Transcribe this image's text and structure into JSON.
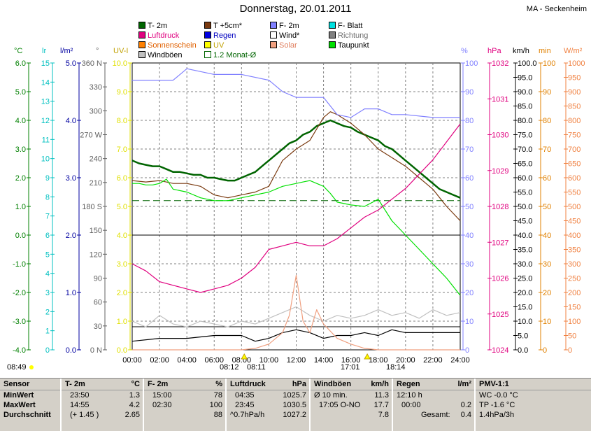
{
  "title": "Donnerstag, 20.01.2011",
  "station": "MA - Seckenheim",
  "legend": [
    {
      "label": "T- 2m",
      "color": "#006400"
    },
    {
      "label": "T +5cm*",
      "color": "#7a3a10"
    },
    {
      "label": "F- 2m",
      "color": "#8080ff"
    },
    {
      "label": "F- Blatt",
      "color": "#00e0e0"
    },
    {
      "label": "Luftdruck",
      "color": "#e0007f"
    },
    {
      "label": "Regen",
      "color": "#0000e0"
    },
    {
      "label": "Wind*",
      "color": "#000000"
    },
    {
      "label": "Richtung",
      "color": "#808080"
    },
    {
      "label": "Sonnenschein",
      "color": "#ff8000"
    },
    {
      "label": "UV",
      "color": "#ffff00"
    },
    {
      "label": "Solar",
      "color": "#f0a080"
    },
    {
      "label": "Taupunkt",
      "color": "#00e000"
    },
    {
      "label": "Windböen",
      "color": "#c0c0c0"
    },
    {
      "label": "1.2 Monat-Ø",
      "color": "#006400"
    }
  ],
  "units": {
    "temp": "°C",
    "lr": "lr",
    "rain": "l/m²",
    "dir": "°",
    "uv": "UV-I",
    "hum": "%",
    "press": "hPa",
    "wind": "km/h",
    "sun": "min",
    "solar": "W/m²"
  },
  "colors": {
    "temp": "#008000",
    "lr": "#00c0c0",
    "rain": "#0000a0",
    "dir": "#606060",
    "uv": "#e0e000",
    "hum": "#8080ff",
    "press": "#e0007f",
    "wind": "#000000",
    "sun": "#e08000",
    "solar": "#f08040"
  },
  "axes": {
    "temp_ticks": [
      "6.0",
      "5.0",
      "4.0",
      "3.0",
      "2.0",
      "1.0",
      "0.0",
      "-1.0",
      "-2.0",
      "-3.0",
      "-4.0"
    ],
    "lr_ticks": [
      "15",
      "14",
      "13",
      "12",
      "11",
      "10",
      "9",
      "8",
      "7",
      "6",
      "5",
      "4",
      "3",
      "2",
      "1",
      "0"
    ],
    "rain_ticks": [
      "5.0",
      "4.0",
      "3.0",
      "2.0",
      "1.0",
      "0.0"
    ],
    "dir_ticks": [
      "360 N",
      "330",
      "300",
      "270 W",
      "240",
      "210",
      "180 S",
      "150",
      "120",
      "90",
      "60",
      "30",
      "0 N"
    ],
    "uv_ticks": [
      "10.0",
      "9.0",
      "8.0",
      "7.0",
      "6.0",
      "5.0",
      "4.0",
      "3.0",
      "2.0",
      "1.0",
      "0.0"
    ],
    "hum_ticks": [
      "100",
      "90",
      "80",
      "70",
      "60",
      "50",
      "40",
      "30",
      "20",
      "10",
      "0"
    ],
    "press_ticks": [
      "1032",
      "1031",
      "1030",
      "1029",
      "1028",
      "1027",
      "1026",
      "1025",
      "1024"
    ],
    "wind_ticks": [
      "100.0",
      "95.0",
      "90.0",
      "85.0",
      "80.0",
      "75.0",
      "70.0",
      "65.0",
      "60.0",
      "55.0",
      "50.0",
      "45.0",
      "40.0",
      "35.0",
      "30.0",
      "25.0",
      "20.0",
      "15.0",
      "10.0",
      "5.0",
      "0.0"
    ],
    "sun_ticks": [
      "100",
      "90",
      "80",
      "70",
      "60",
      "50",
      "40",
      "30",
      "20",
      "10",
      "0"
    ],
    "solar_ticks": [
      "1000",
      "950",
      "900",
      "850",
      "800",
      "750",
      "700",
      "650",
      "600",
      "550",
      "500",
      "450",
      "400",
      "350",
      "300",
      "250",
      "200",
      "150",
      "100",
      "50",
      "0"
    ],
    "time_ticks": [
      "00:00",
      "02:00",
      "04:00",
      "06:00",
      "08:00",
      "10:00",
      "12:00",
      "14:00",
      "16:00",
      "18:00",
      "20:00",
      "22:00",
      "24:00"
    ]
  },
  "times": {
    "sunrise_left": "08:49",
    "sun1": "08:12",
    "sun2": "08:11",
    "sun3": "17:01",
    "sun4": "18:14"
  },
  "chart_data": {
    "type": "line",
    "x_unit": "hours",
    "xlim": [
      0,
      24
    ],
    "series": [
      {
        "name": "T- 2m",
        "axis": "temp",
        "ylim": [
          -4,
          6
        ],
        "x": [
          0,
          0.5,
          1,
          1.5,
          2,
          2.5,
          3,
          3.5,
          4,
          4.5,
          5,
          5.5,
          6,
          6.5,
          7,
          7.5,
          8,
          8.5,
          9,
          9.5,
          10,
          10.5,
          11,
          11.5,
          12,
          12.5,
          13,
          13.5,
          14,
          14.5,
          15,
          15.5,
          16,
          16.5,
          17,
          17.5,
          18,
          18.5,
          19,
          19.5,
          20,
          20.5,
          21,
          21.5,
          22,
          22.5,
          23,
          23.5,
          24
        ],
        "y": [
          2.6,
          2.5,
          2.45,
          2.4,
          2.4,
          2.3,
          2.2,
          2.2,
          2.15,
          2.1,
          2.1,
          2.0,
          2.0,
          1.95,
          1.9,
          1.9,
          2.0,
          2.1,
          2.2,
          2.4,
          2.6,
          2.8,
          3.0,
          3.2,
          3.3,
          3.5,
          3.6,
          3.8,
          3.9,
          4.0,
          3.9,
          3.8,
          3.75,
          3.6,
          3.5,
          3.4,
          3.3,
          3.1,
          3.0,
          2.8,
          2.6,
          2.4,
          2.2,
          2.0,
          1.8,
          1.6,
          1.5,
          1.4,
          1.3
        ]
      },
      {
        "name": "T +5cm*",
        "axis": "temp",
        "ylim": [
          -4,
          6
        ],
        "x": [
          0,
          1,
          2,
          3,
          4,
          5,
          6,
          7,
          8,
          9,
          10,
          11,
          12,
          13,
          14,
          14.5,
          15,
          16,
          17,
          18,
          19,
          20,
          21,
          22,
          23,
          24
        ],
        "y": [
          1.9,
          1.85,
          1.9,
          1.8,
          1.8,
          1.7,
          1.4,
          1.3,
          1.4,
          1.5,
          1.7,
          2.6,
          3.0,
          3.3,
          4.1,
          4.3,
          4.2,
          3.9,
          3.5,
          3.0,
          2.7,
          2.4,
          2.0,
          1.6,
          1.0,
          0.5
        ]
      },
      {
        "name": "Taupunkt",
        "axis": "temp",
        "ylim": [
          -4,
          6
        ],
        "x": [
          0,
          0.5,
          1,
          1.5,
          2,
          2.5,
          3,
          4,
          5,
          6,
          7,
          8,
          9,
          10,
          11,
          12,
          12.5,
          13,
          13.5,
          14,
          14.5,
          15,
          16,
          17,
          18,
          19,
          20,
          21,
          22,
          23,
          24
        ],
        "y": [
          1.8,
          1.8,
          1.75,
          1.75,
          1.8,
          1.95,
          1.6,
          1.5,
          1.3,
          1.2,
          1.2,
          1.3,
          1.4,
          1.5,
          1.7,
          1.8,
          1.85,
          1.9,
          1.8,
          1.7,
          1.45,
          1.15,
          1.05,
          1.0,
          1.25,
          0.5,
          0.0,
          -0.5,
          -1.0,
          -1.5,
          -2.1
        ]
      },
      {
        "name": "F- 2m",
        "axis": "hum",
        "ylim": [
          0,
          100
        ],
        "x": [
          0,
          2,
          3,
          4,
          6,
          8,
          10,
          11,
          12,
          13,
          14,
          15,
          16,
          17,
          18,
          19,
          20,
          22,
          24
        ],
        "y": [
          94,
          94,
          94,
          98,
          96,
          96,
          94,
          90,
          88,
          88,
          88,
          82,
          81,
          84,
          84,
          82,
          82,
          81,
          81
        ]
      },
      {
        "name": "Luftdruck",
        "axis": "press",
        "ylim": [
          1024,
          1032
        ],
        "x": [
          0,
          1,
          2,
          3,
          4,
          5,
          6,
          7,
          8,
          9,
          10,
          11,
          12,
          13,
          14,
          15,
          16,
          17,
          18,
          19,
          20,
          21,
          22,
          23,
          24
        ],
        "y": [
          1026.4,
          1026.2,
          1025.9,
          1025.8,
          1025.7,
          1025.6,
          1025.7,
          1025.8,
          1026.0,
          1026.3,
          1026.8,
          1026.9,
          1027.0,
          1026.9,
          1026.9,
          1027.1,
          1027.4,
          1027.7,
          1027.9,
          1028.2,
          1028.5,
          1028.9,
          1029.3,
          1029.8,
          1030.3
        ]
      },
      {
        "name": "Wind*",
        "axis": "wind",
        "ylim": [
          0,
          100
        ],
        "x": [
          0,
          2,
          4,
          6,
          8,
          9,
          10,
          11,
          12,
          13,
          14,
          15,
          16,
          17,
          18,
          19,
          20,
          22,
          24
        ],
        "y": [
          3,
          4,
          4,
          5,
          5,
          3,
          4,
          6,
          7,
          6,
          4,
          5,
          5,
          6,
          5,
          7,
          6,
          6,
          6
        ]
      },
      {
        "name": "Windböen",
        "axis": "wind",
        "ylim": [
          0,
          100
        ],
        "x": [
          0,
          1,
          2,
          3,
          4,
          5,
          6,
          7,
          8,
          9,
          10,
          11,
          12,
          13,
          14,
          15,
          16,
          17,
          18,
          19,
          20,
          21,
          22,
          23,
          24
        ],
        "y": [
          10,
          8,
          12,
          9,
          8,
          10,
          9,
          8,
          10,
          9,
          11,
          13,
          15,
          12,
          10,
          12,
          11,
          12,
          14,
          12,
          13,
          11,
          14,
          12,
          13
        ]
      },
      {
        "name": "Solar",
        "axis": "solar",
        "ylim": [
          0,
          1000
        ],
        "x": [
          0,
          8,
          9,
          10,
          11,
          11.5,
          12,
          12.5,
          13,
          13.5,
          14,
          15,
          16,
          17,
          18,
          24
        ],
        "y": [
          0,
          0,
          5,
          20,
          60,
          120,
          260,
          100,
          60,
          140,
          90,
          40,
          20,
          5,
          0,
          0
        ]
      }
    ],
    "title": "Donnerstag, 20.01.2011"
  },
  "stats": {
    "cols": [
      {
        "head": "Sensor",
        "rows": [
          "MinWert",
          "MaxWert",
          "Durchschnitt"
        ]
      },
      {
        "head": "T- 2m",
        "unit": "°C",
        "rows": [
          [
            "23:50",
            "1.3"
          ],
          [
            "14:55",
            "4.2"
          ],
          [
            "(+ 1.45 )",
            "2.65"
          ]
        ]
      },
      {
        "head": "F- 2m",
        "unit": "%",
        "rows": [
          [
            "15:00",
            "78"
          ],
          [
            "02:30",
            "100"
          ],
          [
            "",
            "88"
          ]
        ]
      },
      {
        "head": "Luftdruck",
        "unit": "hPa",
        "rows": [
          [
            "04:35",
            "1025.7"
          ],
          [
            "23:45",
            "1030.5"
          ],
          [
            "^0.7hPa/h",
            "1027.2"
          ]
        ]
      },
      {
        "head": "Windböen",
        "unit": "km/h",
        "rows": [
          [
            "Ø 10 min.",
            "11.3"
          ],
          [
            "17:05   O-NO",
            "17.7"
          ],
          [
            "",
            "7.8"
          ]
        ]
      },
      {
        "head": "Regen",
        "unit": "l/m²",
        "rows": [
          [
            "12:10 h",
            ""
          ],
          [
            "00:00",
            "0.2"
          ],
          [
            "Gesamt:",
            "0.4"
          ]
        ]
      },
      {
        "head": "PMV-1:1",
        "rows": [
          "WC -0.0 °C",
          "TP -1.6 °C",
          "1.4hPa/3h"
        ]
      }
    ]
  }
}
